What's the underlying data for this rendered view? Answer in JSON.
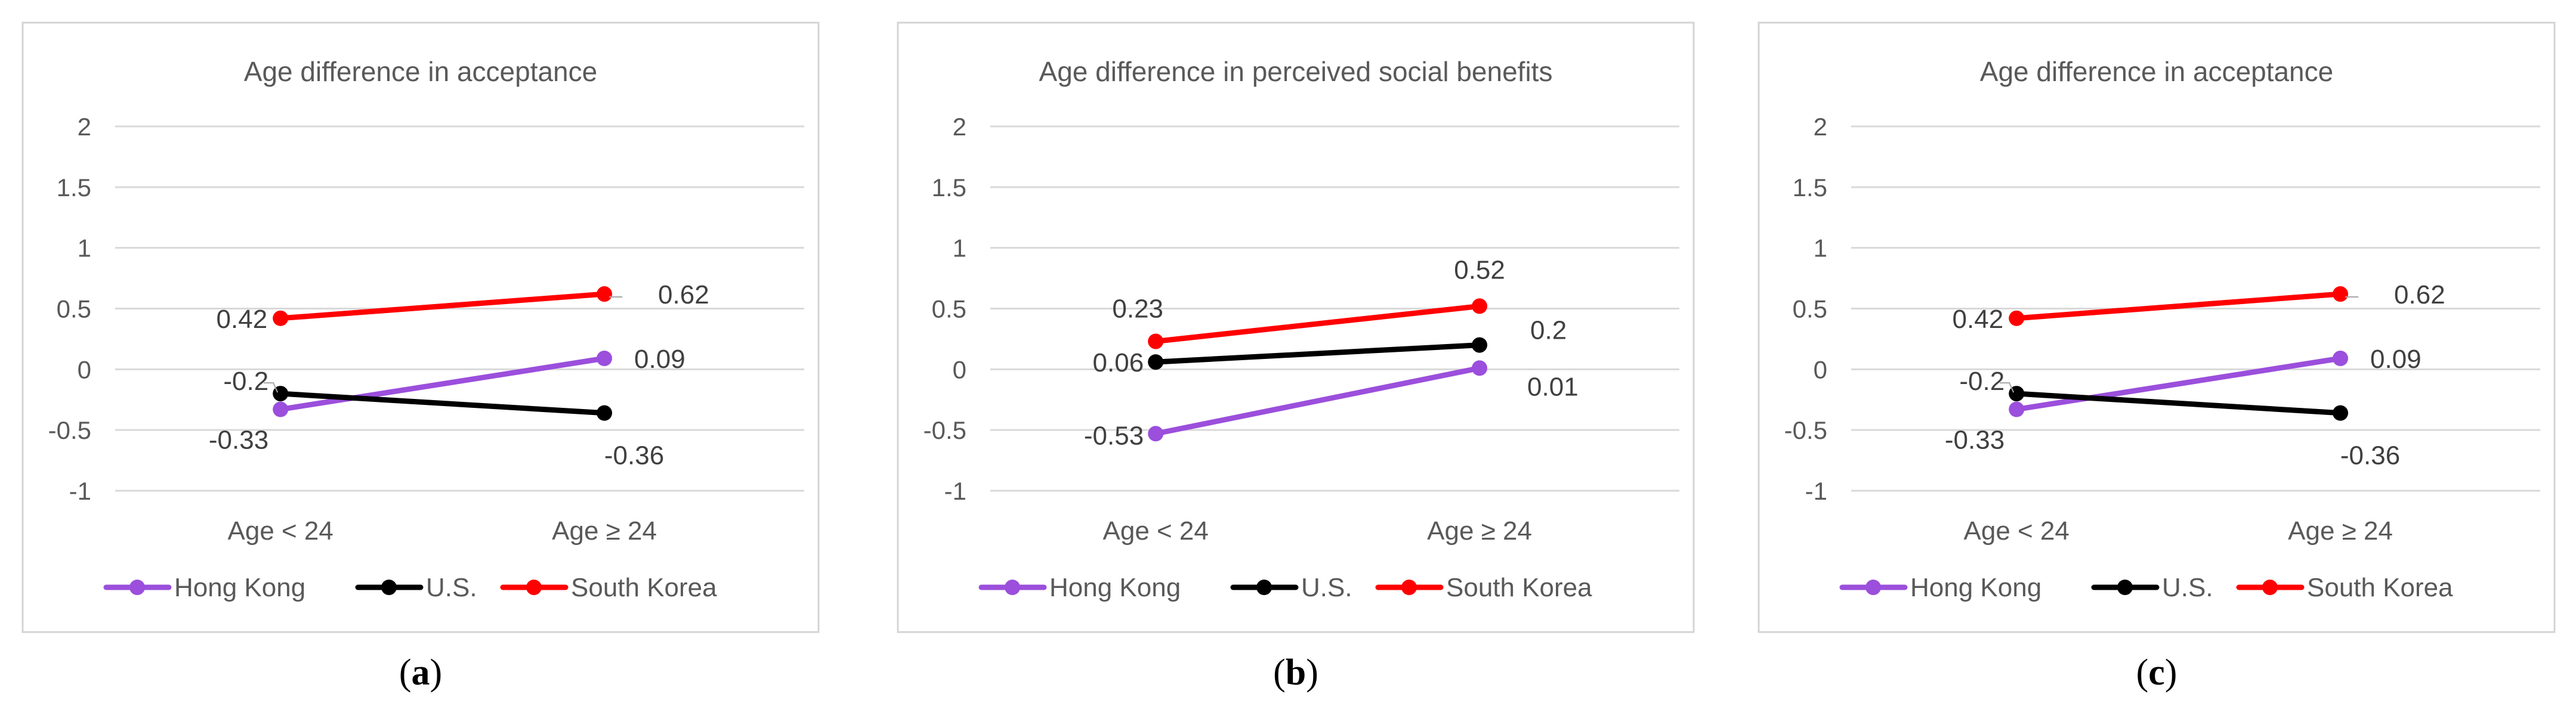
{
  "figure": {
    "panels": [
      {
        "caption_open": "(",
        "caption_letter": "a",
        "caption_close": ")",
        "chart_data": {
          "type": "line",
          "title": "Age difference in acceptance",
          "categories": [
            "Age < 24",
            "Age ≥ 24"
          ],
          "ylim": [
            -1,
            2
          ],
          "yticks": [
            -1,
            -0.5,
            0,
            0.5,
            1,
            1.5,
            2
          ],
          "ytick_labels": [
            "-1",
            "-0.5",
            "0",
            "0.5",
            "1",
            "1.5",
            "2"
          ],
          "grid": true,
          "legend_position": "bottom",
          "series": [
            {
              "name": "Hong Kong",
              "color": "#9b4fdc",
              "values": [
                -0.33,
                0.09
              ],
              "labels": [
                "-0.33",
                "0.09"
              ]
            },
            {
              "name": "U.S.",
              "color": "#000000",
              "values": [
                -0.2,
                -0.36
              ],
              "labels": [
                "-0.2",
                "-0.36"
              ]
            },
            {
              "name": "South Korea",
              "color": "#ff0000",
              "values": [
                0.42,
                0.62
              ],
              "labels": [
                "0.42",
                "0.62"
              ]
            }
          ]
        }
      },
      {
        "caption_open": "(",
        "caption_letter": "b",
        "caption_close": ")",
        "chart_data": {
          "type": "line",
          "title": "Age difference in perceived social benefits",
          "categories": [
            "Age < 24",
            "Age ≥ 24"
          ],
          "ylim": [
            -1,
            2
          ],
          "yticks": [
            -1,
            -0.5,
            0,
            0.5,
            1,
            1.5,
            2
          ],
          "ytick_labels": [
            "-1",
            "-0.5",
            "0",
            "0.5",
            "1",
            "1.5",
            "2"
          ],
          "grid": true,
          "legend_position": "bottom",
          "series": [
            {
              "name": "Hong Kong",
              "color": "#9b4fdc",
              "values": [
                -0.53,
                0.01
              ],
              "labels": [
                "-0.53",
                "0.01"
              ]
            },
            {
              "name": "U.S.",
              "color": "#000000",
              "values": [
                0.06,
                0.2
              ],
              "labels": [
                "0.06",
                "0.2"
              ]
            },
            {
              "name": "South Korea",
              "color": "#ff0000",
              "values": [
                0.23,
                0.52
              ],
              "labels": [
                "0.23",
                "0.52"
              ]
            }
          ]
        }
      },
      {
        "caption_open": "(",
        "caption_letter": "c",
        "caption_close": ")",
        "chart_data": {
          "type": "line",
          "title": "Age difference in acceptance",
          "categories": [
            "Age < 24",
            "Age ≥ 24"
          ],
          "ylim": [
            -1,
            2
          ],
          "yticks": [
            -1,
            -0.5,
            0,
            0.5,
            1,
            1.5,
            2
          ],
          "ytick_labels": [
            "-1",
            "-0.5",
            "0",
            "0.5",
            "1",
            "1.5",
            "2"
          ],
          "grid": true,
          "legend_position": "bottom",
          "series": [
            {
              "name": "Hong Kong",
              "color": "#9b4fdc",
              "values": [
                -0.33,
                0.09
              ],
              "labels": [
                "-0.33",
                "0.09"
              ]
            },
            {
              "name": "U.S.",
              "color": "#000000",
              "values": [
                -0.2,
                -0.36
              ],
              "labels": [
                "-0.2",
                "-0.36"
              ]
            },
            {
              "name": "South Korea",
              "color": "#ff0000",
              "values": [
                0.42,
                0.62
              ],
              "labels": [
                "0.42",
                "0.62"
              ]
            }
          ]
        }
      }
    ]
  }
}
